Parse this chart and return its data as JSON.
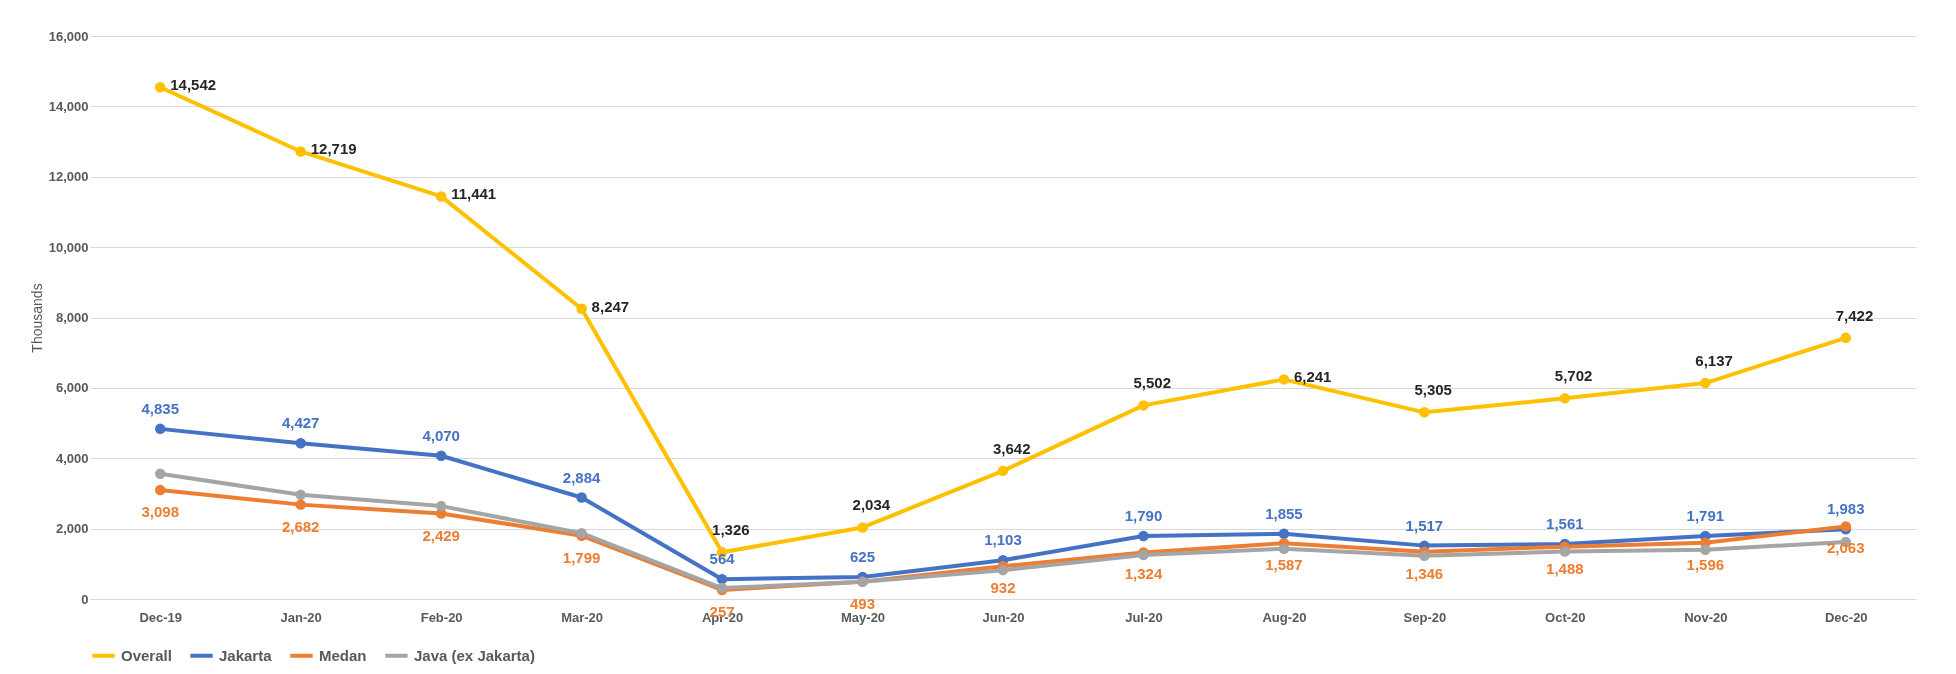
{
  "chart_data": {
    "type": "line",
    "ylabel": "Thousands",
    "categories": [
      "Dec-19",
      "Jan-20",
      "Feb-20",
      "Mar-20",
      "Apr-20",
      "May-20",
      "Jun-20",
      "Jul-20",
      "Aug-20",
      "Sep-20",
      "Oct-20",
      "Nov-20",
      "Dec-20"
    ],
    "series": [
      {
        "name": "Overall",
        "color": "#ffc000",
        "values": [
          14542,
          12719,
          11441,
          8247,
          1326,
          2034,
          3642,
          5502,
          6241,
          5305,
          5702,
          6137,
          7422
        ],
        "value_labels": [
          "14,542",
          "12,719",
          "11,441",
          "8,247",
          "1,326",
          "2,034",
          "3,642",
          "5,502",
          "6,241",
          "5,305",
          "5,702",
          "6,137",
          "7,422"
        ]
      },
      {
        "name": "Jakarta",
        "color": "#4472c4",
        "values": [
          4835,
          4427,
          4070,
          2884,
          564,
          625,
          1103,
          1790,
          1855,
          1517,
          1561,
          1791,
          1983
        ],
        "value_labels": [
          "4,835",
          "4,427",
          "4,070",
          "2,884",
          "564",
          "625",
          "1,103",
          "1,790",
          "1,855",
          "1,517",
          "1,561",
          "1,791",
          "1,983"
        ]
      },
      {
        "name": "Medan",
        "color": "#ed7d31",
        "values": [
          3098,
          2682,
          2429,
          1799,
          257,
          493,
          932,
          1324,
          1587,
          1346,
          1488,
          1596,
          2063
        ],
        "value_labels": [
          "3,098",
          "2,682",
          "2,429",
          "1,799",
          "257",
          "493",
          "932",
          "1,324",
          "1,587",
          "1,346",
          "1,488",
          "1,596",
          "2,063"
        ]
      },
      {
        "name": "Java (ex Jakarta)",
        "color": "#a5a5a5",
        "values": [
          3560,
          2960,
          2640,
          1870,
          310,
          490,
          820,
          1250,
          1430,
          1230,
          1350,
          1400,
          1620
        ]
      }
    ],
    "ylim": [
      0,
      16000
    ],
    "yticks": [
      0,
      {
        "value": 2000,
        "label": "2,000"
      },
      {
        "value": 4000,
        "label": "4,000"
      },
      {
        "value": 6000,
        "label": "6,000"
      },
      {
        "value": 8000,
        "label": "8,000"
      },
      {
        "value": 10000,
        "label": "10,000"
      },
      {
        "value": 12000,
        "label": "12,000"
      },
      {
        "value": 14000,
        "label": "14,000"
      },
      {
        "value": 16000,
        "label": "16,000"
      }
    ],
    "grid": "y",
    "legend": "bottom",
    "marker": "circle",
    "line_style": "solid"
  }
}
